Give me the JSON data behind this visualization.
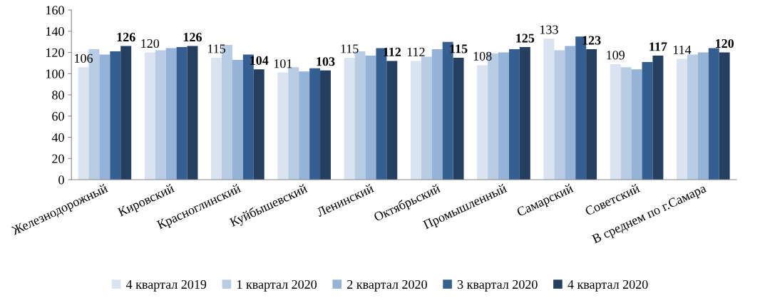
{
  "chart_data": {
    "type": "bar",
    "categories": [
      "Железнодорожный",
      "Кировский",
      "Красноглинский",
      "Куйбышевский",
      "Ленинский",
      "Октябрьский",
      "Промышленный",
      "Самарский",
      "Советский",
      "В среднем по г.Самара"
    ],
    "series": [
      {
        "name": "4 квартал 2019",
        "color": "#dae3f0",
        "values": [
          106,
          120,
          115,
          101,
          115,
          112,
          108,
          133,
          109,
          114
        ],
        "value_labels": [
          "106",
          "120",
          "115",
          "101",
          "115",
          "112",
          "108",
          "133",
          "109",
          "114"
        ]
      },
      {
        "name": "1 квартал 2020",
        "color": "#b8cce4",
        "values": [
          123,
          122,
          127,
          106,
          121,
          116,
          119,
          122,
          106,
          118
        ]
      },
      {
        "name": "2 квартал 2020",
        "color": "#95b3d7",
        "values": [
          118,
          124,
          113,
          102,
          117,
          123,
          120,
          126,
          104,
          120
        ]
      },
      {
        "name": "3 квартал 2020",
        "color": "#365f91",
        "values": [
          121,
          125,
          118,
          105,
          124,
          130,
          123,
          135,
          111,
          124
        ]
      },
      {
        "name": "4 квартал 2020",
        "color": "#243f60",
        "values": [
          126,
          126,
          104,
          103,
          112,
          115,
          125,
          123,
          117,
          120
        ],
        "value_labels": [
          "126",
          "126",
          "104",
          "103",
          "112",
          "115",
          "125",
          "123",
          "117",
          "120"
        ]
      }
    ],
    "ylim": [
      0,
      160
    ],
    "yticks": [
      0,
      20,
      40,
      60,
      80,
      100,
      120,
      140,
      160
    ],
    "grid": false,
    "legend": "bottom"
  }
}
